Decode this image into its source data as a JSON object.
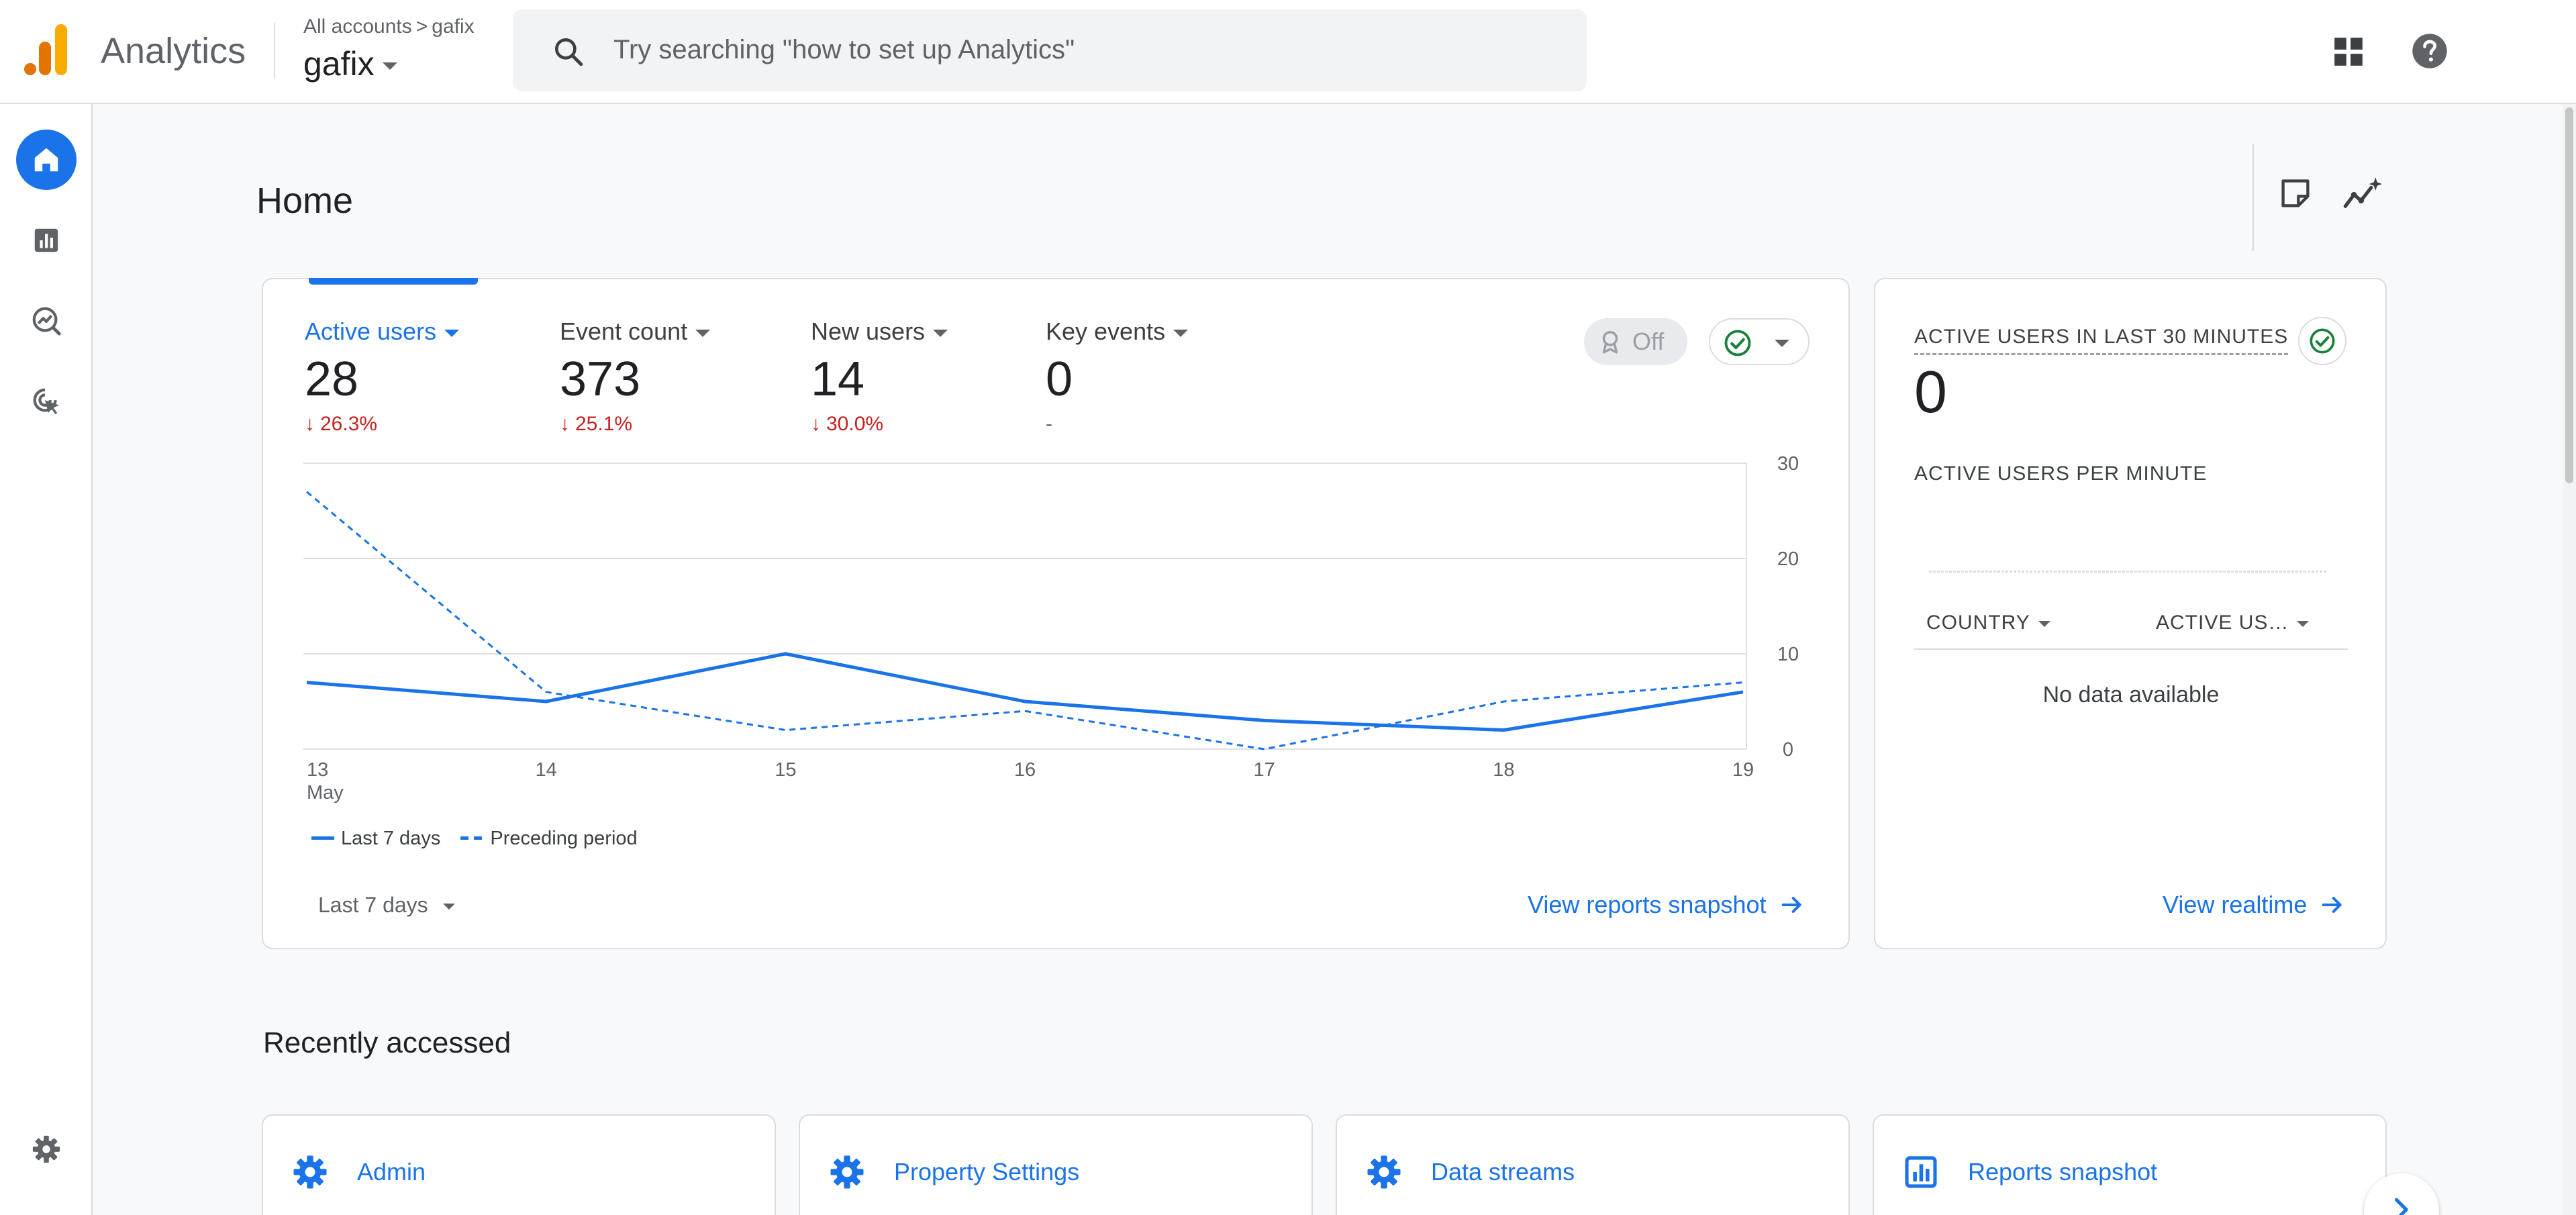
{
  "colors": {
    "accent": "#1a73e8",
    "negative": "#c5221f",
    "positive_check": "#188038",
    "logo_orange": "#f9ab00",
    "logo_dark_orange": "#e37400"
  },
  "header": {
    "product_name": "Analytics",
    "breadcrumb": [
      "All accounts",
      "gafix"
    ],
    "property": "gafix",
    "search_placeholder": "Try searching \"how to set up Analytics\"",
    "icons": [
      "analytics-logo-icon",
      "search-icon",
      "apps-grid-icon",
      "help-icon"
    ]
  },
  "nav": {
    "icons": [
      "home-icon",
      "reports-icon",
      "explore-icon",
      "advertising-icon",
      "settings-icon"
    ],
    "active": "home"
  },
  "page": {
    "title": "Home"
  },
  "summary": {
    "metrics": [
      {
        "label": "Active users",
        "value": "28",
        "change": "26.3%",
        "direction": "down",
        "active": true
      },
      {
        "label": "Event count",
        "value": "373",
        "change": "25.1%",
        "direction": "down"
      },
      {
        "label": "New users",
        "value": "14",
        "change": "30.0%",
        "direction": "down"
      },
      {
        "label": "Key events",
        "value": "0",
        "change": "-",
        "direction": "none"
      }
    ],
    "anomaly_toggle": "Off",
    "date_range": "Last 7 days",
    "link": "View reports snapshot"
  },
  "chart_data": {
    "type": "line",
    "x": [
      "13",
      "14",
      "15",
      "16",
      "17",
      "18",
      "19"
    ],
    "x_sublabel": "May",
    "ylim": [
      0,
      30
    ],
    "yticks": [
      "0",
      "10",
      "20",
      "30"
    ],
    "y_axis_position": "right",
    "grid": true,
    "legend_position": "bottom-left",
    "series": [
      {
        "name": "Last 7 days",
        "style": "solid",
        "values": [
          7,
          5,
          10,
          5,
          3,
          2,
          6
        ]
      },
      {
        "name": "Preceding period",
        "style": "dashed",
        "values": [
          27,
          6,
          2,
          4,
          0,
          5,
          7
        ]
      }
    ]
  },
  "realtime": {
    "title": "ACTIVE USERS IN LAST 30 MINUTES",
    "value": "0",
    "subtitle": "ACTIVE USERS PER MINUTE",
    "columns": [
      "COUNTRY",
      "ACTIVE US…"
    ],
    "empty": "No data available",
    "link": "View realtime"
  },
  "recent": {
    "title": "Recently accessed",
    "items": [
      {
        "name": "Admin",
        "icon": "gear-icon"
      },
      {
        "name": "Property Settings",
        "icon": "gear-icon"
      },
      {
        "name": "Data streams",
        "icon": "gear-icon"
      },
      {
        "name": "Reports snapshot",
        "icon": "reports-icon"
      }
    ]
  }
}
